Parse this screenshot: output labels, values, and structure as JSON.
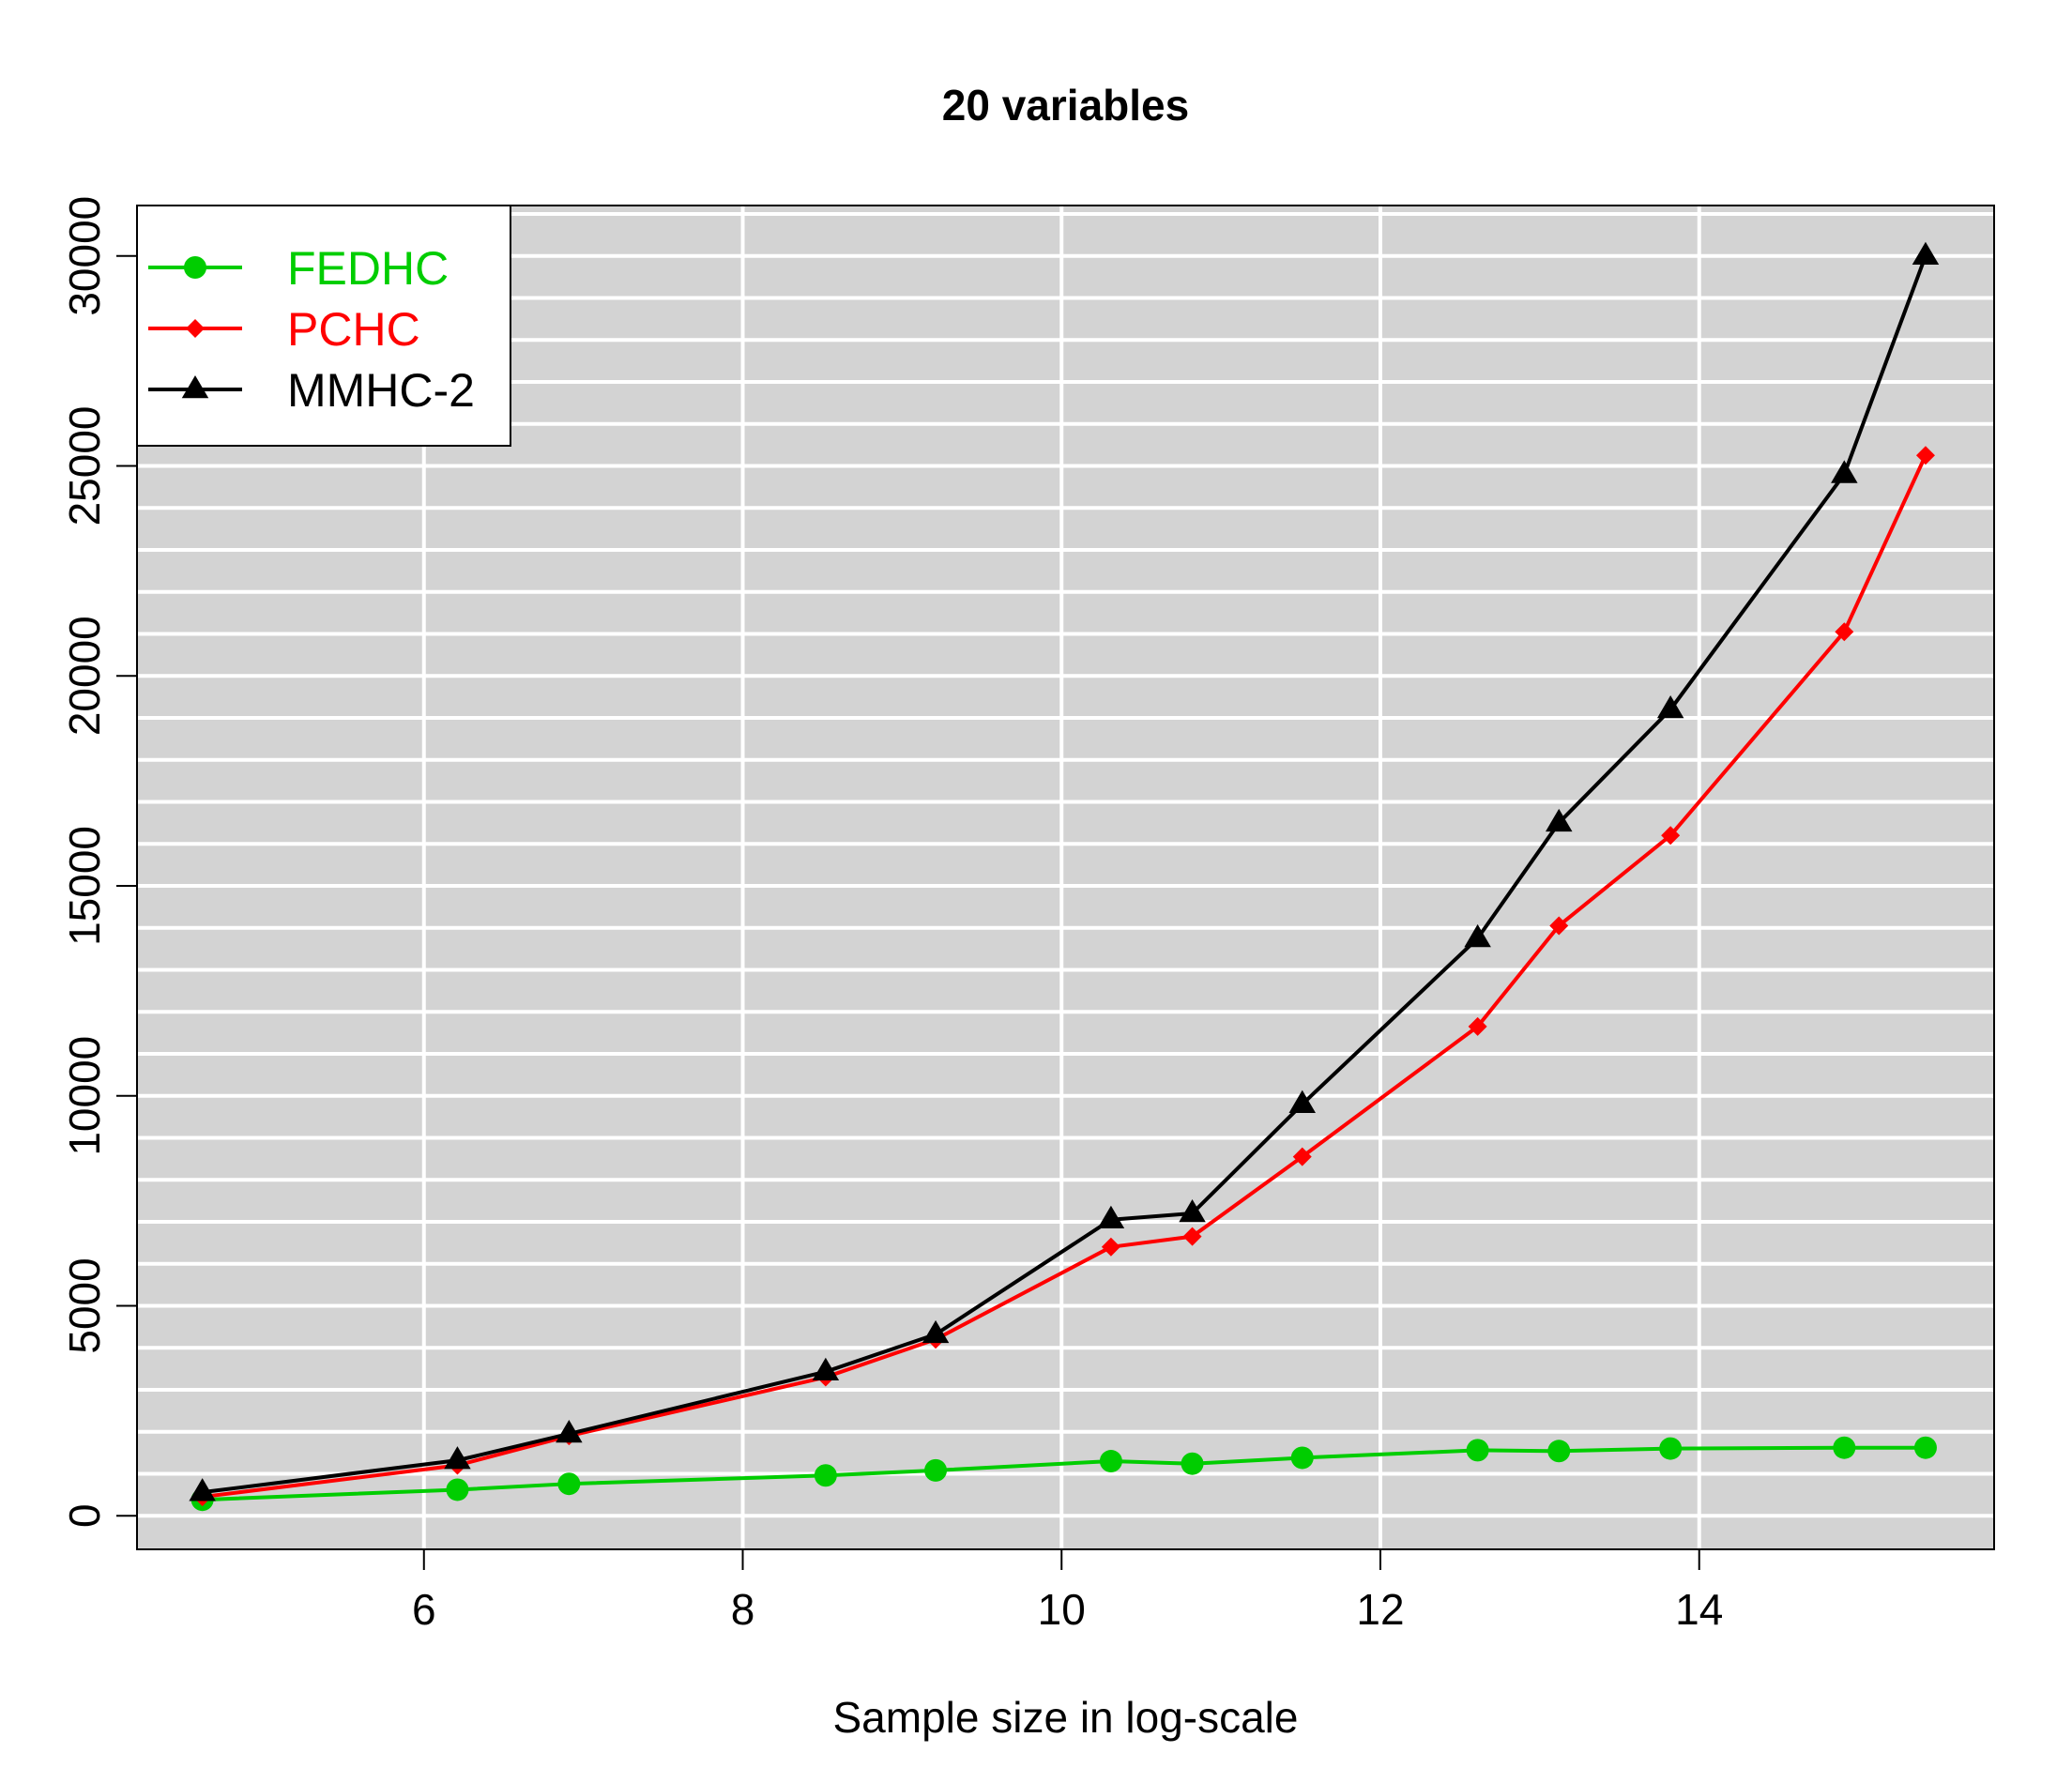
{
  "chart_data": {
    "type": "line",
    "title": "20 variables",
    "xlabel": "Sample size in log-scale",
    "ylabel": "",
    "xlim": [
      4.2,
      15.85
    ],
    "ylim": [
      -800,
      31200
    ],
    "x_ticks": [
      6,
      8,
      10,
      12,
      14
    ],
    "y_ticks": [
      0,
      5000,
      10000,
      15000,
      20000,
      25000,
      30000
    ],
    "x_tick_labels": [
      "6",
      "8",
      "10",
      "12",
      "14"
    ],
    "y_tick_labels": [
      "0",
      "5000",
      "10000",
      "15000",
      "20000",
      "25000",
      "30000"
    ],
    "x_grid": [
      6,
      8,
      10,
      12,
      14
    ],
    "y_grid_step": 1000,
    "grid": true,
    "background": "#d3d3d3",
    "legend_position": "top-left",
    "x": [
      4.61,
      6.21,
      6.91,
      8.52,
      9.21,
      10.31,
      10.82,
      11.51,
      12.61,
      13.12,
      13.82,
      14.91,
      15.42
    ],
    "series": [
      {
        "name": "FEDHC",
        "color": "#00cd00",
        "marker": "circle",
        "values": [
          380,
          620,
          760,
          960,
          1080,
          1300,
          1240,
          1380,
          1560,
          1540,
          1600,
          1620,
          1620
        ]
      },
      {
        "name": "PCHC",
        "color": "#ff0000",
        "marker": "diamond",
        "values": [
          450,
          1200,
          1900,
          3300,
          4200,
          6400,
          6650,
          8550,
          11650,
          14050,
          16200,
          21050,
          25250
        ]
      },
      {
        "name": "MMHC-2",
        "color": "#000000",
        "marker": "triangle",
        "values": [
          560,
          1320,
          1950,
          3430,
          4320,
          7050,
          7200,
          9800,
          13750,
          16500,
          19200,
          24800,
          30000
        ]
      }
    ]
  }
}
